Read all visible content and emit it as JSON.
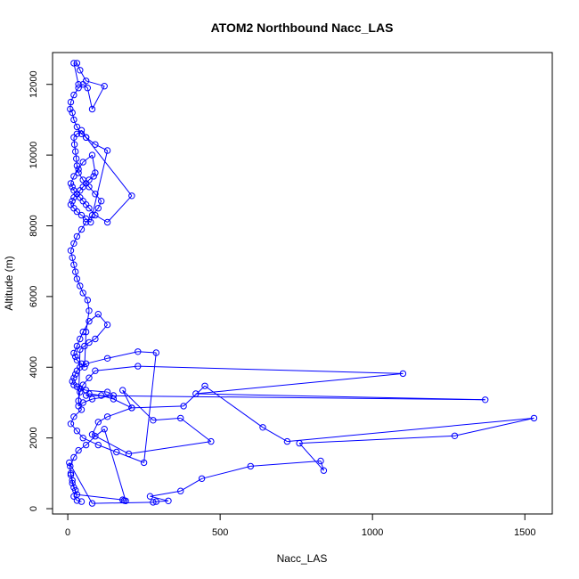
{
  "chart_data": {
    "type": "scatter",
    "mode": "lines+markers",
    "title": "ATOM2 Northbound Nacc_LAS",
    "xlabel": "Nacc_LAS",
    "ylabel": "Altitude (m)",
    "xlim": [
      -50,
      1590
    ],
    "ylim": [
      -150,
      12900
    ],
    "x_ticks": [
      0,
      500,
      1000,
      1500
    ],
    "y_ticks": [
      0,
      2000,
      4000,
      6000,
      8000,
      10000,
      12000
    ],
    "x_tick_labels": [
      "0",
      "500",
      "1000",
      "1500"
    ],
    "y_tick_labels": [
      "0",
      "2000",
      "4000",
      "6000",
      "8000",
      "10000",
      "12000"
    ],
    "grid": false,
    "legend": "none",
    "colors": {
      "series": "#0000ff",
      "frame": "#000000"
    },
    "series": [
      {
        "x": [
          45,
          30,
          20,
          25,
          15,
          10,
          8,
          20,
          35,
          60,
          90,
          120,
          190,
          185,
          180,
          30,
          20,
          15,
          10,
          5,
          80,
          280,
          290,
          330,
          270,
          370,
          440,
          600,
          830,
          840,
          760,
          1270,
          1530,
          720,
          640,
          450,
          380,
          210,
          130,
          100,
          80,
          200,
          470,
          370,
          280,
          180,
          210,
          150,
          110,
          70,
          60,
          1370,
          420,
          1100,
          230,
          90,
          70,
          50,
          40,
          35,
          45,
          20,
          10,
          30,
          50,
          100,
          160,
          250,
          290,
          230,
          130,
          60,
          40,
          30,
          25,
          20,
          15,
          20,
          30,
          40,
          60,
          130,
          150,
          80,
          50,
          35,
          40,
          55,
          70,
          90,
          130,
          100,
          70,
          50,
          40,
          30,
          20,
          25,
          30,
          45,
          55,
          60,
          70,
          65,
          50,
          40,
          30,
          25,
          20,
          15,
          10,
          20,
          30,
          45,
          60,
          80,
          100,
          110,
          90,
          70,
          50,
          35,
          30,
          28,
          25,
          22,
          20,
          30,
          45,
          60,
          210,
          130,
          90,
          70,
          60,
          50,
          40,
          30,
          20,
          15,
          10,
          20,
          35,
          50,
          80,
          90,
          85,
          70,
          60,
          50,
          40,
          30,
          20,
          15,
          10,
          20,
          30,
          45,
          60,
          75,
          130,
          90,
          60,
          45,
          30,
          20,
          15,
          8,
          10,
          20,
          35,
          50,
          65,
          80,
          120,
          60,
          40,
          30,
          20,
          35
        ],
        "y": [
          200,
          230,
          350,
          520,
          720,
          950,
          1200,
          1450,
          1650,
          1800,
          2050,
          2250,
          220,
          230,
          250,
          400,
          600,
          800,
          1000,
          1300,
          150,
          180,
          200,
          220,
          350,
          500,
          850,
          1200,
          1350,
          1080,
          1850,
          2060,
          2560,
          1900,
          2300,
          3470,
          2900,
          2850,
          2600,
          2450,
          2100,
          1550,
          1900,
          2560,
          2500,
          3350,
          2850,
          3100,
          3200,
          3250,
          3200,
          3080,
          3250,
          3820,
          4030,
          3900,
          3700,
          3500,
          3300,
          3050,
          2800,
          2600,
          2400,
          2200,
          2000,
          1800,
          1600,
          1300,
          4410,
          4440,
          4250,
          4100,
          4000,
          3900,
          3800,
          3700,
          3600,
          3500,
          3450,
          3400,
          3350,
          3300,
          3200,
          3100,
          3000,
          2900,
          4500,
          4600,
          4700,
          4800,
          5200,
          5500,
          5300,
          5000,
          4800,
          4600,
          4400,
          4300,
          4200,
          4100,
          4000,
          5000,
          5600,
          5900,
          6100,
          6300,
          6500,
          6700,
          6900,
          7100,
          7300,
          7500,
          7700,
          7900,
          8100,
          8300,
          8500,
          8700,
          8900,
          9100,
          9300,
          9500,
          9700,
          9900,
          10100,
          10300,
          10500,
          10600,
          10700,
          10500,
          8850,
          8100,
          8300,
          8500,
          8600,
          8700,
          8800,
          8900,
          9000,
          9100,
          9200,
          9400,
          9600,
          9800,
          10000,
          9500,
          9400,
          9300,
          9200,
          9100,
          9000,
          8900,
          8800,
          8700,
          8600,
          8500,
          8400,
          8300,
          8200,
          8100,
          10130,
          10300,
          10500,
          10600,
          10800,
          11000,
          11200,
          11300,
          11500,
          11700,
          11900,
          12000,
          11900,
          11300,
          11950,
          12100,
          12400,
          12600,
          12600,
          12000
        ]
      }
    ]
  }
}
